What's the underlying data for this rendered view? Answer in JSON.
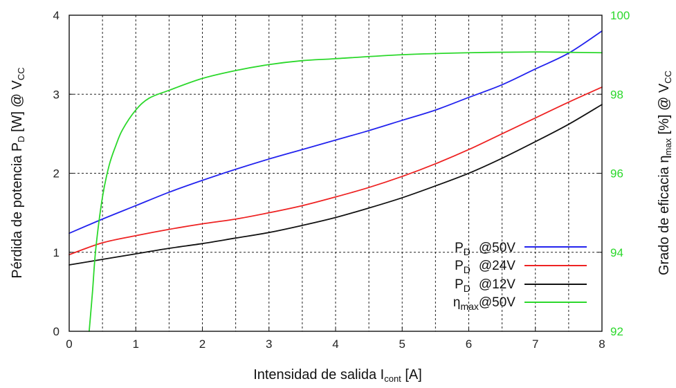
{
  "chart_data": {
    "type": "line",
    "x_axis": {
      "label_main": "Intensidad de salida I",
      "label_sub": "cont",
      "label_tail": " [A]",
      "range": [
        0,
        8
      ],
      "ticks": [
        "0",
        "1",
        "2",
        "3",
        "4",
        "5",
        "6",
        "7",
        "8"
      ]
    },
    "y_left": {
      "label_main": "Pérdida de potencia P",
      "label_sub": "D",
      "label_mid": " [W] @ V",
      "label_sub2": "CC",
      "range": [
        0,
        4
      ],
      "ticks": [
        "0",
        "1",
        "2",
        "3",
        "4"
      ]
    },
    "y_right": {
      "label_main": "Grado de eficacia η",
      "label_sub": "max",
      "label_mid": " [%] @ V",
      "label_sub2": "CC",
      "range": [
        92,
        100
      ],
      "ticks": [
        "92",
        "94",
        "96",
        "98",
        "100"
      ],
      "color": "#2bd82b"
    },
    "grid": true,
    "legend_position": "bottom-right",
    "series": [
      {
        "id": "pd50",
        "legend_main": "P",
        "legend_sub": "D",
        "legend_tail": "@50V",
        "color": "#2222ee",
        "axis": "left",
        "x": [
          0,
          0.5,
          1,
          1.5,
          2,
          2.5,
          3,
          3.5,
          4,
          4.5,
          5,
          5.5,
          6,
          6.5,
          7,
          7.5,
          8
        ],
        "y": [
          1.24,
          1.42,
          1.59,
          1.76,
          1.91,
          2.05,
          2.18,
          2.3,
          2.42,
          2.54,
          2.67,
          2.8,
          2.96,
          3.12,
          3.32,
          3.52,
          3.8
        ]
      },
      {
        "id": "pd24",
        "legend_main": "P",
        "legend_sub": "D",
        "legend_tail": "@24V",
        "color": "#ee2222",
        "axis": "left",
        "x": [
          0,
          0.5,
          1,
          1.5,
          2,
          2.5,
          3,
          3.5,
          4,
          4.5,
          5,
          5.5,
          6,
          6.5,
          7,
          7.5,
          8
        ],
        "y": [
          0.97,
          1.12,
          1.21,
          1.29,
          1.36,
          1.42,
          1.5,
          1.59,
          1.7,
          1.82,
          1.96,
          2.12,
          2.3,
          2.5,
          2.7,
          2.9,
          3.09
        ]
      },
      {
        "id": "pd12",
        "legend_main": "P",
        "legend_sub": "D",
        "legend_tail": "@12V",
        "color": "#111111",
        "axis": "left",
        "x": [
          0,
          0.5,
          1,
          1.5,
          2,
          2.5,
          3,
          3.5,
          4,
          4.5,
          5,
          5.5,
          6,
          6.5,
          7,
          7.5,
          8
        ],
        "y": [
          0.84,
          0.91,
          0.98,
          1.05,
          1.11,
          1.18,
          1.25,
          1.34,
          1.44,
          1.56,
          1.69,
          1.84,
          2.0,
          2.19,
          2.4,
          2.62,
          2.87
        ]
      },
      {
        "id": "eta50",
        "legend_main": "η",
        "legend_sub": "max",
        "legend_tail": "@50V",
        "color": "#2bd82b",
        "axis": "right",
        "x": [
          0.3,
          0.35,
          0.4,
          0.5,
          0.6,
          0.7,
          0.8,
          1.0,
          1.2,
          1.5,
          2.0,
          2.5,
          3.0,
          3.5,
          4.0,
          5.0,
          6.0,
          7.0,
          7.5,
          8.0
        ],
        "y": [
          92.0,
          93.0,
          94.1,
          95.4,
          96.2,
          96.7,
          97.1,
          97.6,
          97.9,
          98.1,
          98.4,
          98.6,
          98.75,
          98.85,
          98.9,
          99.0,
          99.05,
          99.07,
          99.06,
          99.05
        ]
      }
    ]
  }
}
